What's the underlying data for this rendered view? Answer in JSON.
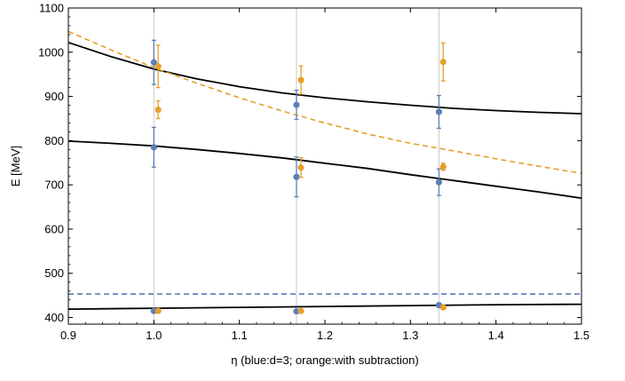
{
  "chart_data": {
    "type": "scatter",
    "title": "",
    "xlabel": "η (blue:d=3; orange:with subtraction)",
    "ylabel": "E [MeV]",
    "xlim": [
      0.9,
      1.5
    ],
    "ylim": [
      385,
      1100
    ],
    "x_ticks": [
      "0.9",
      "1.0",
      "1.1",
      "1.2",
      "1.3",
      "1.4",
      "1.5"
    ],
    "y_ticks": [
      "400",
      "500",
      "600",
      "700",
      "800",
      "900",
      "1000",
      "1100"
    ],
    "vertical_gridlines": [
      1.0,
      1.1667,
      1.3333
    ],
    "colors": {
      "blue": "#5b7fb5",
      "orange": "#e5a02a",
      "fit": "#000000"
    },
    "series": [
      {
        "color": "blue",
        "points": [
          {
            "x": 1.0,
            "y": 415,
            "err": 0
          },
          {
            "x": 1.0,
            "y": 785,
            "err": 45
          },
          {
            "x": 1.0,
            "y": 977,
            "err": 50
          },
          {
            "x": 1.1667,
            "y": 414,
            "err": 0
          },
          {
            "x": 1.1667,
            "y": 718,
            "err": 45
          },
          {
            "x": 1.1667,
            "y": 881,
            "err": 33
          },
          {
            "x": 1.3333,
            "y": 428,
            "err": 0
          },
          {
            "x": 1.3333,
            "y": 706,
            "err": 30
          },
          {
            "x": 1.3333,
            "y": 865,
            "err": 37
          }
        ]
      },
      {
        "color": "orange",
        "points": [
          {
            "x": 1.005,
            "y": 415,
            "err": 0
          },
          {
            "x": 1.005,
            "y": 870,
            "err": 20
          },
          {
            "x": 1.005,
            "y": 968,
            "err": 48
          },
          {
            "x": 1.172,
            "y": 415,
            "err": 0
          },
          {
            "x": 1.172,
            "y": 739,
            "err": 22
          },
          {
            "x": 1.172,
            "y": 937,
            "err": 32
          },
          {
            "x": 1.3383,
            "y": 423,
            "err": 0
          },
          {
            "x": 1.3383,
            "y": 741,
            "err": 8
          },
          {
            "x": 1.3383,
            "y": 978,
            "err": 43
          }
        ]
      }
    ],
    "curves": [
      {
        "style": "solid",
        "color": "fit",
        "x": [
          0.9,
          0.95,
          1.0,
          1.05,
          1.1,
          1.15,
          1.2,
          1.25,
          1.3,
          1.35,
          1.4,
          1.45,
          1.5
        ],
        "y": [
          1022,
          990,
          962,
          940,
          922,
          908,
          897,
          888,
          880,
          873,
          868,
          864,
          861
        ]
      },
      {
        "style": "solid",
        "color": "fit",
        "x": [
          0.9,
          0.95,
          1.0,
          1.05,
          1.1,
          1.15,
          1.2,
          1.25,
          1.3,
          1.35,
          1.4,
          1.45,
          1.5
        ],
        "y": [
          799,
          794,
          788,
          780,
          771,
          761,
          749,
          737,
          723,
          710,
          697,
          684,
          670
        ]
      },
      {
        "style": "solid",
        "color": "fit",
        "x": [
          0.9,
          1.0,
          1.1,
          1.2,
          1.3,
          1.4,
          1.5
        ],
        "y": [
          419,
          421,
          423,
          425,
          427,
          429,
          430
        ]
      },
      {
        "style": "dashed",
        "color": "orange",
        "x": [
          0.9,
          0.95,
          1.0,
          1.05,
          1.1,
          1.15,
          1.2,
          1.25,
          1.3,
          1.35,
          1.4,
          1.45,
          1.5
        ],
        "y": [
          1047,
          1005,
          965,
          930,
          897,
          867,
          840,
          815,
          794,
          777,
          759,
          742,
          726
        ]
      },
      {
        "style": "dashed",
        "color": "blue",
        "x": [
          0.9,
          1.5
        ],
        "y": [
          453,
          453
        ]
      }
    ]
  }
}
